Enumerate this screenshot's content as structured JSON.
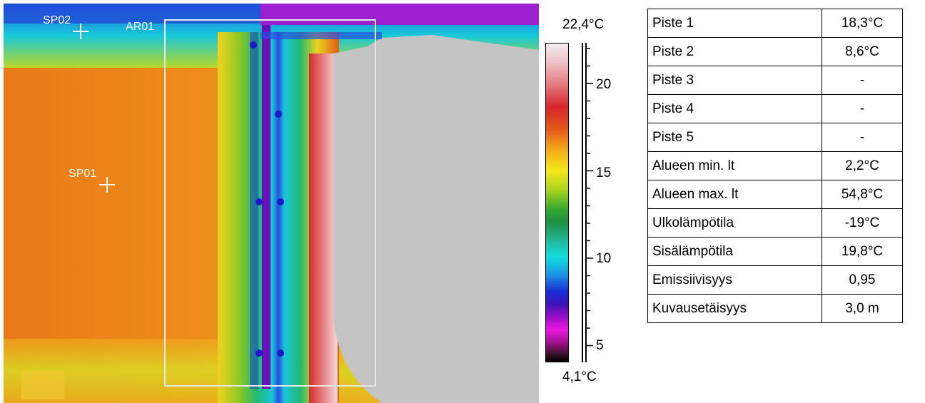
{
  "image": {
    "markers": [
      {
        "label": "SP02"
      },
      {
        "label": "SP01"
      }
    ],
    "area_label": "AR01"
  },
  "scale": {
    "max_label": "22,4°C",
    "min_label": "4,1°C",
    "ticks": [
      "20",
      "15",
      "10",
      "5"
    ],
    "colors": [
      "#f5ecee",
      "#d7262a",
      "#f2a51a",
      "#f5e81a",
      "#1d8f3f",
      "#12dede",
      "#1a2bd8",
      "#ea18e2",
      "#000000"
    ]
  },
  "table": {
    "rows": [
      {
        "key": "Piste 1",
        "value": "18,3°C"
      },
      {
        "key": "Piste 2",
        "value": "8,6°C"
      },
      {
        "key": "Piste 3",
        "value": "-"
      },
      {
        "key": "Piste 4",
        "value": "-"
      },
      {
        "key": "Piste 5",
        "value": "-"
      },
      {
        "key": "Alueen min. lt",
        "value": "2,2°C"
      },
      {
        "key": "Alueen max. lt",
        "value": "54,8°C"
      },
      {
        "key": "Ulkolämpötila",
        "value": "-19°C"
      },
      {
        "key": "Sisälämpötila",
        "value": "19,8°C"
      },
      {
        "key": "Emissiivisyys",
        "value": "0,95"
      },
      {
        "key": "Kuvausetäisyys",
        "value": "3,0 m"
      }
    ]
  }
}
